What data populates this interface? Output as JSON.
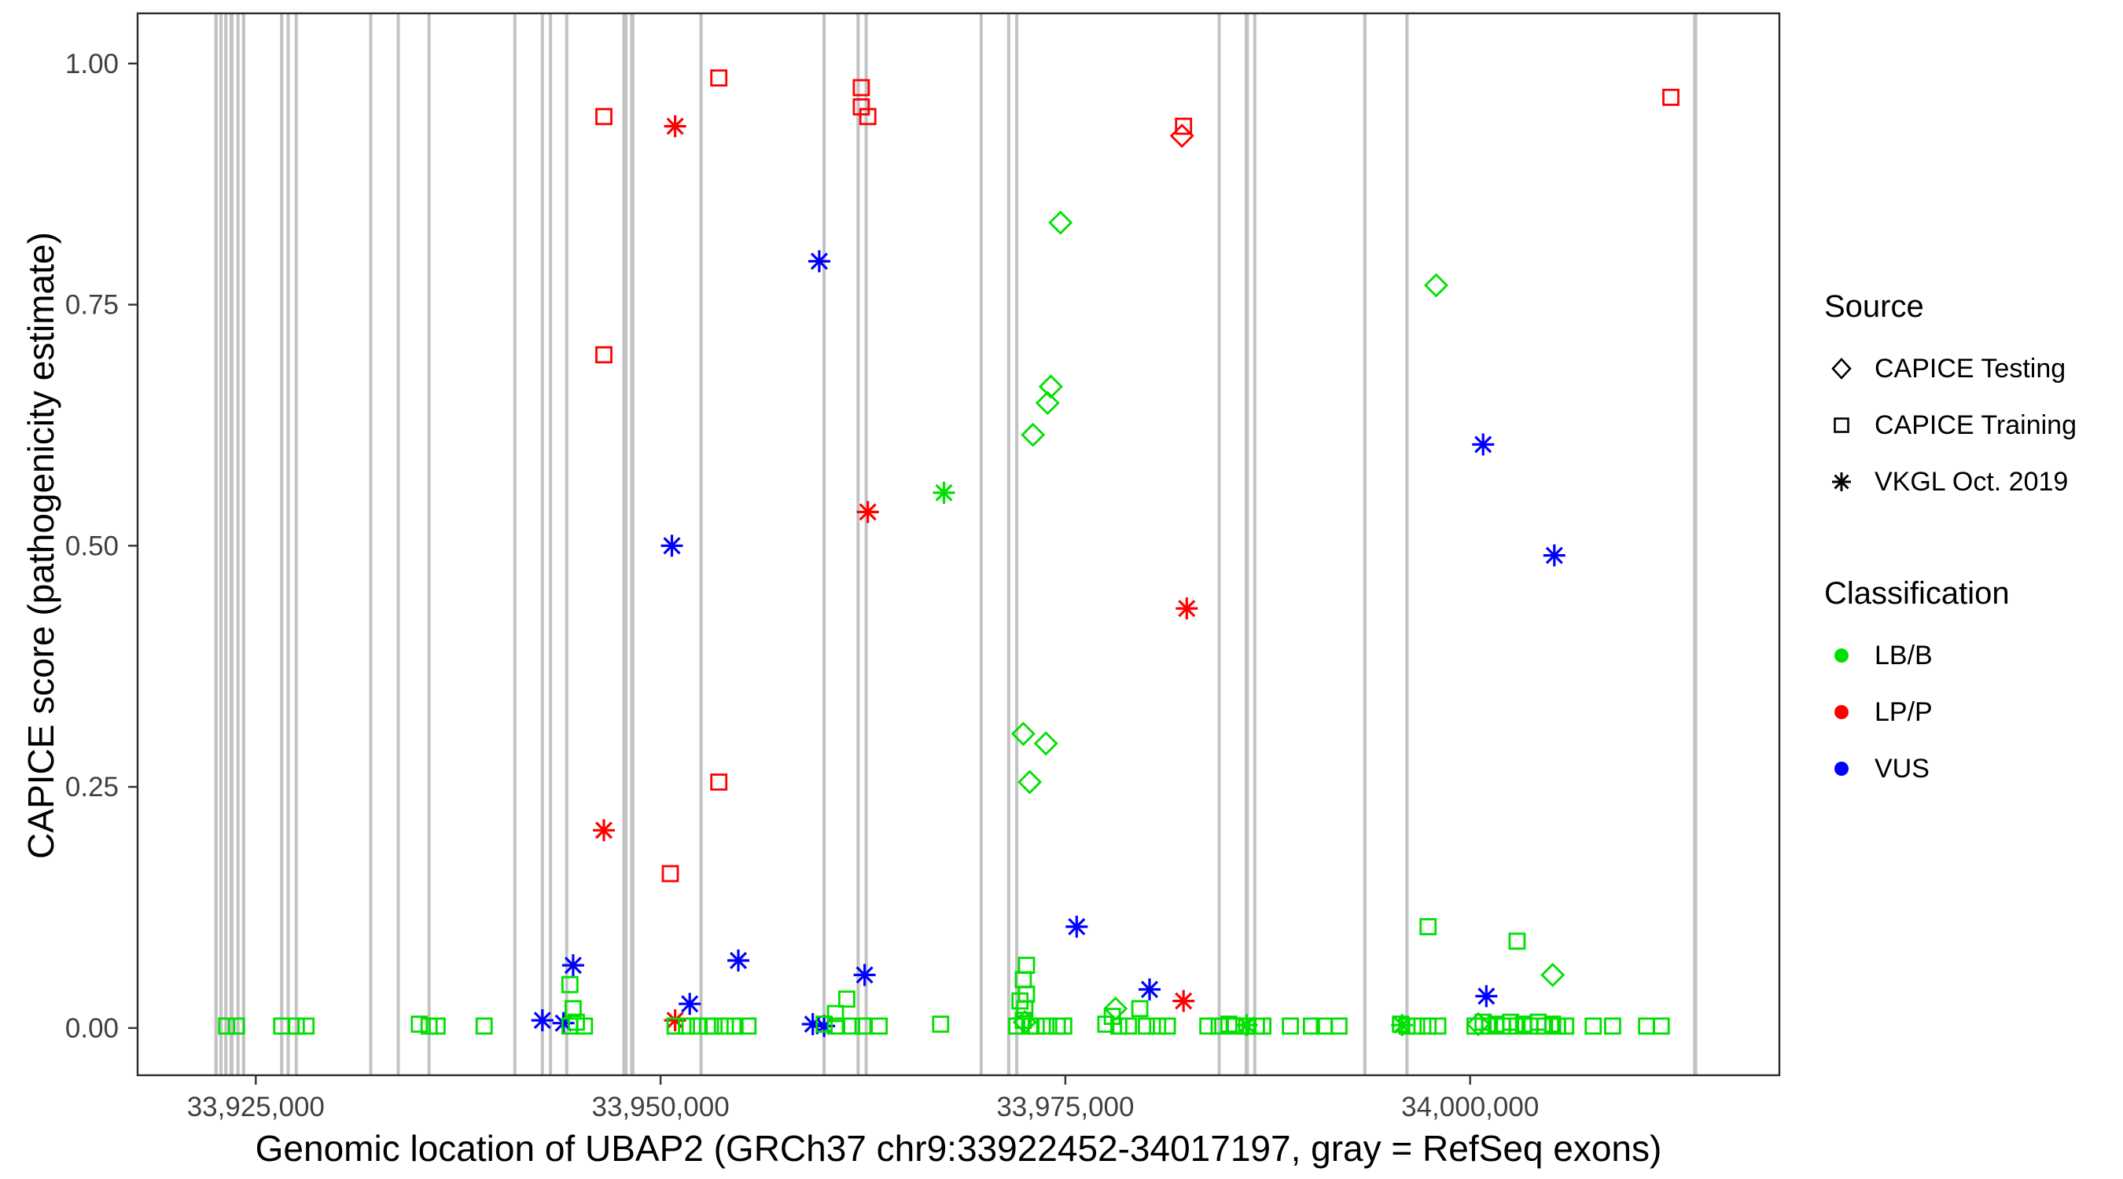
{
  "figure": {
    "background": "#ffffff",
    "panel_border_color": "#2b2b2b",
    "exon_color": "#c3c3c3",
    "tick_text_color": "#404040"
  },
  "legend": {
    "source": {
      "title": "Source",
      "items": [
        {
          "label": "CAPICE Testing",
          "marker": "diamond-open-icon"
        },
        {
          "label": "CAPICE Training",
          "marker": "square-open-icon"
        },
        {
          "label": "VKGL Oct. 2019",
          "marker": "asterisk-icon"
        }
      ]
    },
    "classification": {
      "title": "Classification",
      "items": [
        {
          "label": "LB/B",
          "color": "#00e000"
        },
        {
          "label": "LP/P",
          "color": "#ff0000"
        },
        {
          "label": "VUS",
          "color": "#0000ff"
        }
      ]
    }
  },
  "chart_data": {
    "type": "scatter",
    "title": "",
    "xlabel": "Genomic location of UBAP2 (GRCh37 chr9:33922452-34017197, gray = RefSeq exons)",
    "ylabel": "CAPICE score (pathogenicity estimate)",
    "x_domain": [
      33917700,
      34019100
    ],
    "y_domain": [
      -0.049,
      1.052
    ],
    "x_ticks": [
      {
        "value": 33925000,
        "label": "33,925,000"
      },
      {
        "value": 33950000,
        "label": "33,950,000"
      },
      {
        "value": 33975000,
        "label": "33,975,000"
      },
      {
        "value": 34000000,
        "label": "34,000,000"
      }
    ],
    "y_ticks": [
      {
        "value": 0.0,
        "label": "0.00"
      },
      {
        "value": 0.25,
        "label": "0.25"
      },
      {
        "value": 0.5,
        "label": "0.50"
      },
      {
        "value": 0.75,
        "label": "0.75"
      },
      {
        "value": 1.0,
        "label": "1.00"
      }
    ],
    "class_colors": {
      "LB/B": "#00e000",
      "LP/P": "#ff0000",
      "VUS": "#0000ff"
    },
    "source_shapes": {
      "testing": "diamond",
      "training": "square",
      "vkgl": "asterisk"
    },
    "exons": [
      [
        33922550,
        220
      ],
      [
        33922850,
        200
      ],
      [
        33923150,
        200
      ],
      [
        33923500,
        250
      ],
      [
        33923900,
        200
      ],
      [
        33924250,
        200
      ],
      [
        33926600,
        200
      ],
      [
        33927000,
        150
      ],
      [
        33927500,
        200
      ],
      [
        33932100,
        150
      ],
      [
        33933800,
        150
      ],
      [
        33935700,
        150
      ],
      [
        33941000,
        150
      ],
      [
        33942700,
        200
      ],
      [
        33943200,
        150
      ],
      [
        33944200,
        150
      ],
      [
        33947800,
        320
      ],
      [
        33948250,
        260
      ],
      [
        33952500,
        200
      ],
      [
        33960100,
        200
      ],
      [
        33962200,
        200
      ],
      [
        33962700,
        150
      ],
      [
        33969800,
        150
      ],
      [
        33971500,
        200
      ],
      [
        33972000,
        150
      ],
      [
        33984500,
        150
      ],
      [
        33986200,
        260
      ],
      [
        33986700,
        150
      ],
      [
        33993500,
        200
      ],
      [
        33996100,
        200
      ],
      [
        34013900,
        260
      ]
    ],
    "point_format": [
      "genomic_position",
      "capice_score",
      "source",
      "classification"
    ],
    "points": [
      [
        33946500,
        0.945,
        "training",
        "LP/P"
      ],
      [
        33953600,
        0.985,
        "training",
        "LP/P"
      ],
      [
        33962400,
        0.975,
        "training",
        "LP/P"
      ],
      [
        33962400,
        0.955,
        "training",
        "LP/P"
      ],
      [
        33962800,
        0.945,
        "training",
        "LP/P"
      ],
      [
        33982300,
        0.935,
        "training",
        "LP/P"
      ],
      [
        34012400,
        0.965,
        "training",
        "LP/P"
      ],
      [
        33946500,
        0.698,
        "training",
        "LP/P"
      ],
      [
        33953600,
        0.255,
        "training",
        "LP/P"
      ],
      [
        33950600,
        0.16,
        "training",
        "LP/P"
      ],
      [
        33950900,
        0.935,
        "vkgl",
        "LP/P"
      ],
      [
        33962800,
        0.535,
        "vkgl",
        "LP/P"
      ],
      [
        33982500,
        0.435,
        "vkgl",
        "LP/P"
      ],
      [
        33946500,
        0.205,
        "vkgl",
        "LP/P"
      ],
      [
        33982300,
        0.028,
        "vkgl",
        "LP/P"
      ],
      [
        33950900,
        0.008,
        "vkgl",
        "LP/P"
      ],
      [
        33982200,
        0.925,
        "testing",
        "LP/P"
      ],
      [
        33974700,
        0.835,
        "testing",
        "LB/B"
      ],
      [
        33974100,
        0.665,
        "testing",
        "LB/B"
      ],
      [
        33973900,
        0.648,
        "testing",
        "LB/B"
      ],
      [
        33973000,
        0.615,
        "testing",
        "LB/B"
      ],
      [
        33997900,
        0.77,
        "testing",
        "LB/B"
      ],
      [
        33972400,
        0.305,
        "testing",
        "LB/B"
      ],
      [
        33973800,
        0.295,
        "testing",
        "LB/B"
      ],
      [
        33972800,
        0.255,
        "testing",
        "LB/B"
      ],
      [
        34005100,
        0.055,
        "testing",
        "LB/B"
      ],
      [
        33978100,
        0.02,
        "testing",
        "LB/B"
      ],
      [
        33972500,
        0.006,
        "testing",
        "LB/B"
      ],
      [
        34000500,
        0.004,
        "testing",
        "LB/B"
      ],
      [
        33967500,
        0.555,
        "vkgl",
        "LB/B"
      ],
      [
        33986200,
        0.003,
        "vkgl",
        "LB/B"
      ],
      [
        33995800,
        0.003,
        "vkgl",
        "LB/B"
      ],
      [
        33959800,
        0.795,
        "vkgl",
        "VUS"
      ],
      [
        33950700,
        0.5,
        "vkgl",
        "VUS"
      ],
      [
        34000800,
        0.605,
        "vkgl",
        "VUS"
      ],
      [
        34005200,
        0.49,
        "vkgl",
        "VUS"
      ],
      [
        33975700,
        0.105,
        "vkgl",
        "VUS"
      ],
      [
        33954800,
        0.07,
        "vkgl",
        "VUS"
      ],
      [
        33944600,
        0.065,
        "vkgl",
        "VUS"
      ],
      [
        33962600,
        0.055,
        "vkgl",
        "VUS"
      ],
      [
        33980200,
        0.04,
        "vkgl",
        "VUS"
      ],
      [
        34001000,
        0.033,
        "vkgl",
        "VUS"
      ],
      [
        33951800,
        0.025,
        "vkgl",
        "VUS"
      ],
      [
        33942700,
        0.008,
        "vkgl",
        "VUS"
      ],
      [
        33944000,
        0.005,
        "vkgl",
        "VUS"
      ],
      [
        33959400,
        0.004,
        "vkgl",
        "VUS"
      ],
      [
        33960100,
        0.002,
        "vkgl",
        "VUS"
      ],
      [
        33944400,
        0.045,
        "training",
        "LB/B"
      ],
      [
        33997400,
        0.105,
        "training",
        "LB/B"
      ],
      [
        34002900,
        0.09,
        "training",
        "LB/B"
      ],
      [
        33972600,
        0.065,
        "training",
        "LB/B"
      ],
      [
        33972400,
        0.05,
        "training",
        "LB/B"
      ],
      [
        33972600,
        0.035,
        "training",
        "LB/B"
      ],
      [
        33972200,
        0.028,
        "training",
        "LB/B"
      ],
      [
        33972500,
        0.02,
        "training",
        "LB/B"
      ],
      [
        33961500,
        0.03,
        "training",
        "LB/B"
      ],
      [
        33960800,
        0.015,
        "training",
        "LB/B"
      ],
      [
        33979600,
        0.02,
        "training",
        "LB/B"
      ],
      [
        33977900,
        0.012,
        "training",
        "LB/B"
      ],
      [
        33944600,
        0.02,
        "training",
        "LB/B"
      ],
      [
        33923200,
        0.002,
        "training",
        "LB/B"
      ],
      [
        33923800,
        0.002,
        "training",
        "LB/B"
      ],
      [
        33926600,
        0.002,
        "training",
        "LB/B"
      ],
      [
        33927500,
        0.002,
        "training",
        "LB/B"
      ],
      [
        33928100,
        0.002,
        "training",
        "LB/B"
      ],
      [
        33935100,
        0.004,
        "training",
        "LB/B"
      ],
      [
        33935700,
        0.002,
        "training",
        "LB/B"
      ],
      [
        33936200,
        0.002,
        "training",
        "LB/B"
      ],
      [
        33939100,
        0.002,
        "training",
        "LB/B"
      ],
      [
        33944400,
        0.002,
        "training",
        "LB/B"
      ],
      [
        33944800,
        0.006,
        "training",
        "LB/B"
      ],
      [
        33945300,
        0.002,
        "training",
        "LB/B"
      ],
      [
        33950900,
        0.002,
        "training",
        "LB/B"
      ],
      [
        33951600,
        0.002,
        "training",
        "LB/B"
      ],
      [
        33952300,
        0.002,
        "training",
        "LB/B"
      ],
      [
        33952900,
        0.002,
        "training",
        "LB/B"
      ],
      [
        33953300,
        0.002,
        "training",
        "LB/B"
      ],
      [
        33954000,
        0.002,
        "training",
        "LB/B"
      ],
      [
        33954600,
        0.002,
        "training",
        "LB/B"
      ],
      [
        33955400,
        0.002,
        "training",
        "LB/B"
      ],
      [
        33960100,
        0.004,
        "training",
        "LB/B"
      ],
      [
        33960800,
        0.002,
        "training",
        "LB/B"
      ],
      [
        33961800,
        0.002,
        "training",
        "LB/B"
      ],
      [
        33962500,
        0.002,
        "training",
        "LB/B"
      ],
      [
        33963500,
        0.002,
        "training",
        "LB/B"
      ],
      [
        33967300,
        0.004,
        "training",
        "LB/B"
      ],
      [
        33972000,
        0.002,
        "training",
        "LB/B"
      ],
      [
        33972400,
        0.008,
        "training",
        "LB/B"
      ],
      [
        33972800,
        0.002,
        "training",
        "LB/B"
      ],
      [
        33973200,
        0.002,
        "training",
        "LB/B"
      ],
      [
        33973800,
        0.002,
        "training",
        "LB/B"
      ],
      [
        33974500,
        0.002,
        "training",
        "LB/B"
      ],
      [
        33974900,
        0.002,
        "training",
        "LB/B"
      ],
      [
        33977500,
        0.004,
        "training",
        "LB/B"
      ],
      [
        33978300,
        0.002,
        "training",
        "LB/B"
      ],
      [
        33978900,
        0.002,
        "training",
        "LB/B"
      ],
      [
        33980000,
        0.002,
        "training",
        "LB/B"
      ],
      [
        33980700,
        0.002,
        "training",
        "LB/B"
      ],
      [
        33981300,
        0.002,
        "training",
        "LB/B"
      ],
      [
        33983800,
        0.002,
        "training",
        "LB/B"
      ],
      [
        33984500,
        0.002,
        "training",
        "LB/B"
      ],
      [
        33985100,
        0.004,
        "training",
        "LB/B"
      ],
      [
        33985500,
        0.002,
        "training",
        "LB/B"
      ],
      [
        33986200,
        0.002,
        "training",
        "LB/B"
      ],
      [
        33986800,
        0.002,
        "training",
        "LB/B"
      ],
      [
        33987200,
        0.002,
        "training",
        "LB/B"
      ],
      [
        33988900,
        0.002,
        "training",
        "LB/B"
      ],
      [
        33990200,
        0.002,
        "training",
        "LB/B"
      ],
      [
        33991000,
        0.002,
        "training",
        "LB/B"
      ],
      [
        33991900,
        0.002,
        "training",
        "LB/B"
      ],
      [
        33995700,
        0.004,
        "training",
        "LB/B"
      ],
      [
        33996100,
        0.002,
        "training",
        "LB/B"
      ],
      [
        33996700,
        0.002,
        "training",
        "LB/B"
      ],
      [
        33997400,
        0.002,
        "training",
        "LB/B"
      ],
      [
        33998000,
        0.002,
        "training",
        "LB/B"
      ],
      [
        34000300,
        0.002,
        "training",
        "LB/B"
      ],
      [
        34000800,
        0.006,
        "training",
        "LB/B"
      ],
      [
        34001200,
        0.002,
        "training",
        "LB/B"
      ],
      [
        34001600,
        0.004,
        "training",
        "LB/B"
      ],
      [
        34002000,
        0.002,
        "training",
        "LB/B"
      ],
      [
        34002500,
        0.006,
        "training",
        "LB/B"
      ],
      [
        34002900,
        0.002,
        "training",
        "LB/B"
      ],
      [
        34003300,
        0.004,
        "training",
        "LB/B"
      ],
      [
        34003700,
        0.002,
        "training",
        "LB/B"
      ],
      [
        34004200,
        0.006,
        "training",
        "LB/B"
      ],
      [
        34004600,
        0.002,
        "training",
        "LB/B"
      ],
      [
        34005100,
        0.004,
        "training",
        "LB/B"
      ],
      [
        34005400,
        0.002,
        "training",
        "LB/B"
      ],
      [
        34005900,
        0.002,
        "training",
        "LB/B"
      ],
      [
        34007600,
        0.002,
        "training",
        "LB/B"
      ],
      [
        34008800,
        0.002,
        "training",
        "LB/B"
      ],
      [
        34010900,
        0.002,
        "training",
        "LB/B"
      ],
      [
        34011800,
        0.002,
        "training",
        "LB/B"
      ]
    ]
  }
}
